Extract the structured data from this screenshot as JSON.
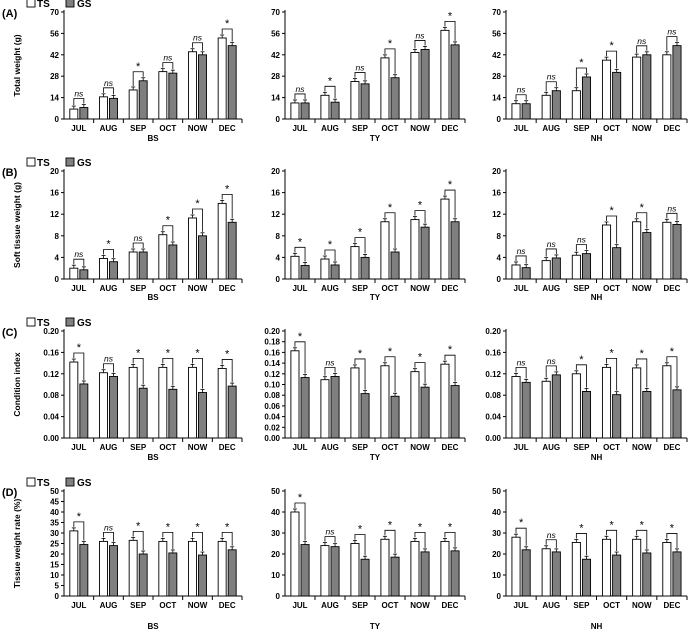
{
  "months": [
    "JUL",
    "AUG",
    "SEP",
    "OCT",
    "NOW",
    "DEC"
  ],
  "legend": {
    "ts": "TS",
    "gs": "GS"
  },
  "colors": {
    "ts_fill": "#ffffff",
    "gs_fill": "#7f7f7f",
    "bar_stroke": "#000000",
    "axis": "#000000"
  },
  "chart_data": [
    {
      "type": "bar",
      "panel_label": "(A)",
      "ylabel": "Total weight (g)",
      "site": "BS",
      "ylim": [
        0,
        70
      ],
      "yticks": [
        0,
        14,
        28,
        42,
        56,
        70
      ],
      "series": [
        {
          "name": "TS",
          "values": [
            6.5,
            14.5,
            19,
            31,
            44,
            53
          ]
        },
        {
          "name": "GS",
          "values": [
            7.5,
            13.5,
            25,
            30,
            42,
            48
          ]
        }
      ],
      "annotations": [
        "ns",
        "ns",
        "*",
        "ns",
        "ns",
        "*"
      ]
    },
    {
      "type": "bar",
      "ylabel": "",
      "site": "TY",
      "ylim": [
        0,
        70
      ],
      "yticks": [
        0,
        14,
        28,
        42,
        56,
        70
      ],
      "series": [
        {
          "name": "TS",
          "values": [
            10.5,
            15.5,
            24.5,
            40,
            43.5,
            58
          ]
        },
        {
          "name": "GS",
          "values": [
            10.5,
            11,
            23,
            27,
            45.5,
            48.5
          ]
        }
      ],
      "annotations": [
        "ns",
        "*",
        "ns",
        "*",
        "ns",
        "*"
      ]
    },
    {
      "type": "bar",
      "ylabel": "",
      "site": "NH",
      "ylim": [
        0,
        70
      ],
      "yticks": [
        0,
        14,
        28,
        42,
        56,
        70
      ],
      "series": [
        {
          "name": "TS",
          "values": [
            10,
            15.5,
            18.5,
            38.5,
            40.5,
            42
          ]
        },
        {
          "name": "GS",
          "values": [
            10,
            18.5,
            27.5,
            30.5,
            42,
            48
          ]
        }
      ],
      "annotations": [
        "ns",
        "ns",
        "*",
        "*",
        "ns",
        "ns"
      ]
    },
    {
      "type": "bar",
      "panel_label": "(B)",
      "ylabel": "Soft tissue weight (g)",
      "site": "BS",
      "ylim": [
        0,
        20
      ],
      "yticks": [
        0,
        4,
        8,
        12,
        16,
        20
      ],
      "series": [
        {
          "name": "TS",
          "values": [
            2,
            3.8,
            5,
            8.2,
            11.3,
            14
          ]
        },
        {
          "name": "GS",
          "values": [
            1.7,
            3.2,
            5,
            6.3,
            8,
            10.5
          ]
        }
      ],
      "annotations": [
        "ns",
        "*",
        "ns",
        "*",
        "*",
        "*"
      ]
    },
    {
      "type": "bar",
      "ylabel": "",
      "site": "TY",
      "ylim": [
        0,
        20
      ],
      "yticks": [
        0,
        4,
        8,
        12,
        16,
        20
      ],
      "series": [
        {
          "name": "TS",
          "values": [
            4.2,
            3.7,
            6,
            10.6,
            11,
            14.8
          ]
        },
        {
          "name": "GS",
          "values": [
            2.5,
            2.6,
            4,
            5,
            9.6,
            10.6
          ]
        }
      ],
      "annotations": [
        "*",
        "*",
        "*",
        "*",
        "*",
        "*"
      ]
    },
    {
      "type": "bar",
      "ylabel": "",
      "site": "NH",
      "ylim": [
        0,
        20
      ],
      "yticks": [
        0,
        4,
        8,
        12,
        16,
        20
      ],
      "series": [
        {
          "name": "TS",
          "values": [
            2.6,
            3.4,
            4.4,
            10,
            10.6,
            10.5
          ]
        },
        {
          "name": "GS",
          "values": [
            2.1,
            3.9,
            4.7,
            5.8,
            8.6,
            10.1
          ]
        }
      ],
      "annotations": [
        "ns",
        "ns",
        "ns",
        "*",
        "*",
        "ns"
      ]
    },
    {
      "type": "bar",
      "panel_label": "(C)",
      "ylabel": "Condition index",
      "site": "BS",
      "ylim": [
        0,
        0.2
      ],
      "yticks": [
        0,
        0.04,
        0.08,
        0.12,
        0.16,
        0.2
      ],
      "series": [
        {
          "name": "TS",
          "values": [
            0.142,
            0.122,
            0.132,
            0.132,
            0.132,
            0.13
          ]
        },
        {
          "name": "GS",
          "values": [
            0.101,
            0.115,
            0.093,
            0.091,
            0.085,
            0.097
          ]
        }
      ],
      "annotations": [
        "*",
        "ns",
        "*",
        "*",
        "*",
        "*"
      ]
    },
    {
      "type": "bar",
      "ylabel": "",
      "site": "TY",
      "ylim": [
        0,
        0.2
      ],
      "yticks": [
        0,
        0.02,
        0.04,
        0.06,
        0.08,
        0.1,
        0.12,
        0.14,
        0.16,
        0.18,
        0.2
      ],
      "series": [
        {
          "name": "TS",
          "values": [
            0.163,
            0.109,
            0.131,
            0.135,
            0.124,
            0.138
          ]
        },
        {
          "name": "GS",
          "values": [
            0.113,
            0.115,
            0.083,
            0.078,
            0.095,
            0.098
          ]
        }
      ],
      "annotations": [
        "*",
        "ns",
        "*",
        "*",
        "*",
        "*"
      ]
    },
    {
      "type": "bar",
      "ylabel": "",
      "site": "NH",
      "ylim": [
        0,
        0.2
      ],
      "yticks": [
        0,
        0.04,
        0.08,
        0.12,
        0.16,
        0.2
      ],
      "series": [
        {
          "name": "TS",
          "values": [
            0.115,
            0.106,
            0.12,
            0.132,
            0.131,
            0.135
          ]
        },
        {
          "name": "GS",
          "values": [
            0.104,
            0.118,
            0.087,
            0.081,
            0.087,
            0.09
          ]
        }
      ],
      "annotations": [
        "ns",
        "ns",
        "*",
        "*",
        "*",
        "*"
      ]
    },
    {
      "type": "bar",
      "panel_label": "(D)",
      "ylabel": "Tissue weight rate (%)",
      "site": "BS",
      "ylim": [
        0,
        50
      ],
      "yticks": [
        0,
        5,
        10,
        15,
        20,
        25,
        30,
        35,
        40,
        45,
        50
      ],
      "series": [
        {
          "name": "TS",
          "values": [
            31,
            26,
            26.5,
            26,
            26,
            26
          ]
        },
        {
          "name": "GS",
          "values": [
            24.5,
            24,
            20,
            20.5,
            19.5,
            22
          ]
        }
      ],
      "annotations": [
        "*",
        "ns",
        "*",
        "*",
        "*",
        "*"
      ]
    },
    {
      "type": "bar",
      "ylabel": "",
      "site": "TY",
      "ylim": [
        0,
        50
      ],
      "yticks": [
        0,
        10,
        20,
        30,
        40,
        50
      ],
      "series": [
        {
          "name": "TS",
          "values": [
            40,
            24,
            25,
            27,
            26,
            26
          ]
        },
        {
          "name": "GS",
          "values": [
            24.5,
            23.5,
            17.5,
            18.5,
            21,
            21.5
          ]
        }
      ],
      "annotations": [
        "*",
        "ns",
        "*",
        "*",
        "*",
        "*"
      ]
    },
    {
      "type": "bar",
      "ylabel": "",
      "site": "NH",
      "ylim": [
        0,
        50
      ],
      "yticks": [
        0,
        10,
        20,
        30,
        40,
        50
      ],
      "series": [
        {
          "name": "TS",
          "values": [
            28,
            22.5,
            25.5,
            27,
            27,
            25.5
          ]
        },
        {
          "name": "GS",
          "values": [
            22,
            21,
            17.5,
            19.5,
            20.5,
            21
          ]
        }
      ],
      "annotations": [
        "*",
        "ns",
        "*",
        "*",
        "*",
        "*"
      ]
    }
  ]
}
